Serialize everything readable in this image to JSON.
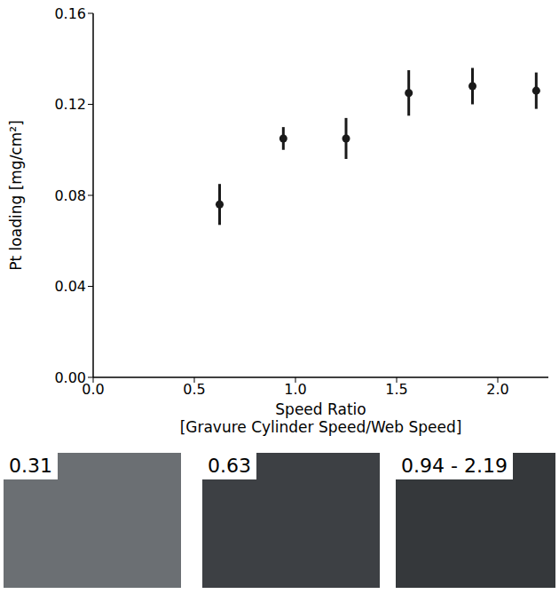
{
  "chart_data": {
    "type": "scatter",
    "x_label": [
      "Speed Ratio",
      "[Gravure Cylinder Speed/Web Speed]"
    ],
    "y_label": "Pt loading [mg/cm²]",
    "x": [
      0.625,
      0.94,
      1.25,
      1.56,
      1.875,
      2.19
    ],
    "values": [
      0.076,
      0.105,
      0.105,
      0.125,
      0.128,
      0.126
    ],
    "errors": [
      0.009,
      0.005,
      0.009,
      0.01,
      0.008,
      0.008
    ],
    "color": "#1a1a1a",
    "marker": "circle",
    "xlim": [
      0,
      2.25
    ],
    "xticks": [
      {
        "value": 0,
        "label": "0.0"
      },
      0.5,
      {
        "value": 1,
        "label": "1.0"
      },
      1.5,
      {
        "value": 2,
        "label": "2.0"
      }
    ],
    "ylim": [
      0,
      0.16
    ],
    "yticks": [
      {
        "value": 0,
        "label": "0.00"
      },
      0.04,
      0.08,
      0.12,
      0.16
    ],
    "grid": false,
    "images": [
      {
        "label": "0.31"
      },
      {
        "label": "0.63"
      },
      {
        "label": "0.94 - 2.19"
      }
    ]
  }
}
